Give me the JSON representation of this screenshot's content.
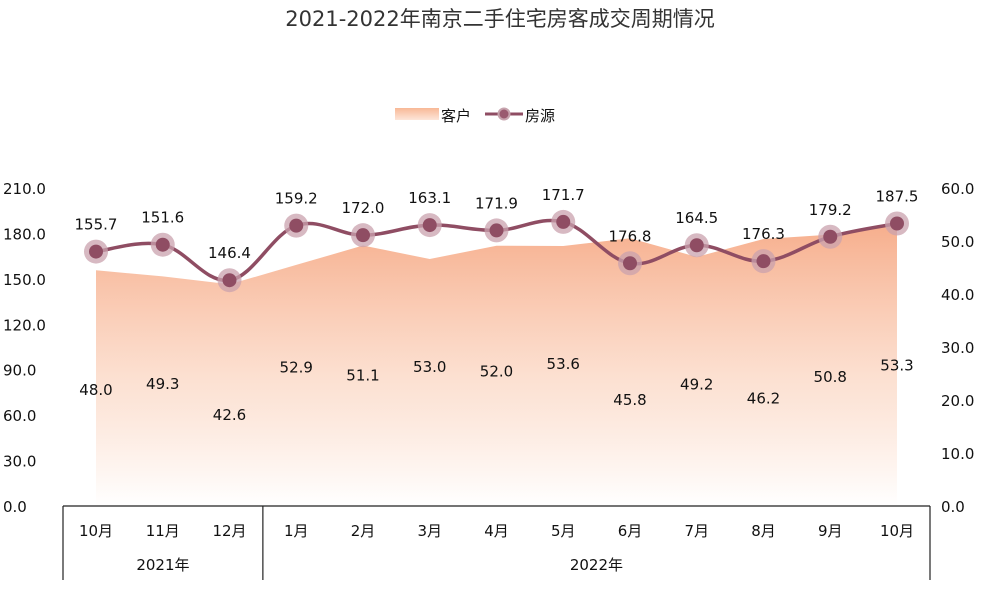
{
  "chart_data": {
    "type": "line",
    "title": "2021-2022年南京二手住宅房客成交周期情况",
    "categories": [
      "10月",
      "11月",
      "12月",
      "1月",
      "2月",
      "3月",
      "4月",
      "5月",
      "6月",
      "7月",
      "8月",
      "9月",
      "10月"
    ],
    "year_groups": [
      {
        "label": "2021年",
        "span": 3
      },
      {
        "label": "2022年",
        "span": 10
      }
    ],
    "series": [
      {
        "name": "客户",
        "kind": "area",
        "axis": "left",
        "color": "#f7b18c",
        "values": [
          155.7,
          151.6,
          146.4,
          159.2,
          172.0,
          163.1,
          171.9,
          171.7,
          176.8,
          164.5,
          176.3,
          179.2,
          187.5
        ]
      },
      {
        "name": "房源",
        "kind": "line",
        "axis": "right",
        "color": "#8f4d63",
        "values": [
          48.0,
          49.3,
          42.6,
          52.9,
          51.1,
          53.0,
          52.0,
          53.6,
          45.8,
          49.2,
          46.2,
          50.8,
          53.3
        ]
      }
    ],
    "left_axis": {
      "min": 0,
      "max": 210,
      "step": 30,
      "ticks": [
        "0.0",
        "30.0",
        "60.0",
        "90.0",
        "120.0",
        "150.0",
        "180.0",
        "210.0"
      ]
    },
    "right_axis": {
      "min": 0,
      "max": 60,
      "step": 10,
      "ticks": [
        "0.0",
        "10.0",
        "20.0",
        "30.0",
        "40.0",
        "50.0",
        "60.0"
      ]
    },
    "legend": {
      "position": "top-center",
      "items": [
        "客户",
        "房源"
      ]
    }
  }
}
